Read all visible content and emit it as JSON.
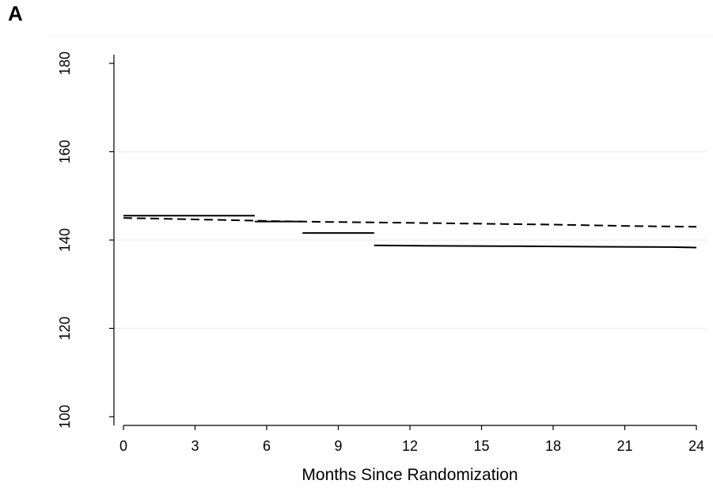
{
  "panel_label": "A",
  "chart_data": {
    "type": "line",
    "title": "",
    "xlabel": "Months Since Randomization",
    "ylabel": "",
    "xlim": [
      0,
      24
    ],
    "ylim": [
      100,
      180
    ],
    "x_ticks": [
      0,
      3,
      6,
      9,
      12,
      15,
      18,
      21,
      24
    ],
    "y_ticks": [
      100,
      120,
      140,
      160,
      180
    ],
    "grid": "horizontal",
    "legend": "none",
    "colors": {
      "line": "#000000",
      "grid": "#eaf2f3",
      "axis": "#000000"
    },
    "series": [
      {
        "style": "solid",
        "segments": [
          {
            "x": [
              0,
              5.5
            ],
            "y": [
              145.5,
              145.5
            ]
          },
          {
            "x": [
              5.5,
              7.5
            ],
            "y": [
              144.2,
              144.2
            ]
          },
          {
            "x": [
              7.5,
              10.5
            ],
            "y": [
              141.6,
              141.6
            ]
          },
          {
            "x": [
              10.5,
              12.5,
              16.5,
              19.5,
              23,
              24
            ],
            "y": [
              138.8,
              138.7,
              138.6,
              138.5,
              138.4,
              138.3
            ]
          }
        ]
      },
      {
        "style": "dashed",
        "segments": [
          {
            "x": [
              0,
              5.5,
              6,
              8.5,
              12,
              15,
              18,
              21,
              24
            ],
            "y": [
              145.0,
              144.4,
              144.3,
              144.1,
              143.9,
              143.7,
              143.5,
              143.2,
              143.0
            ]
          }
        ]
      }
    ]
  }
}
